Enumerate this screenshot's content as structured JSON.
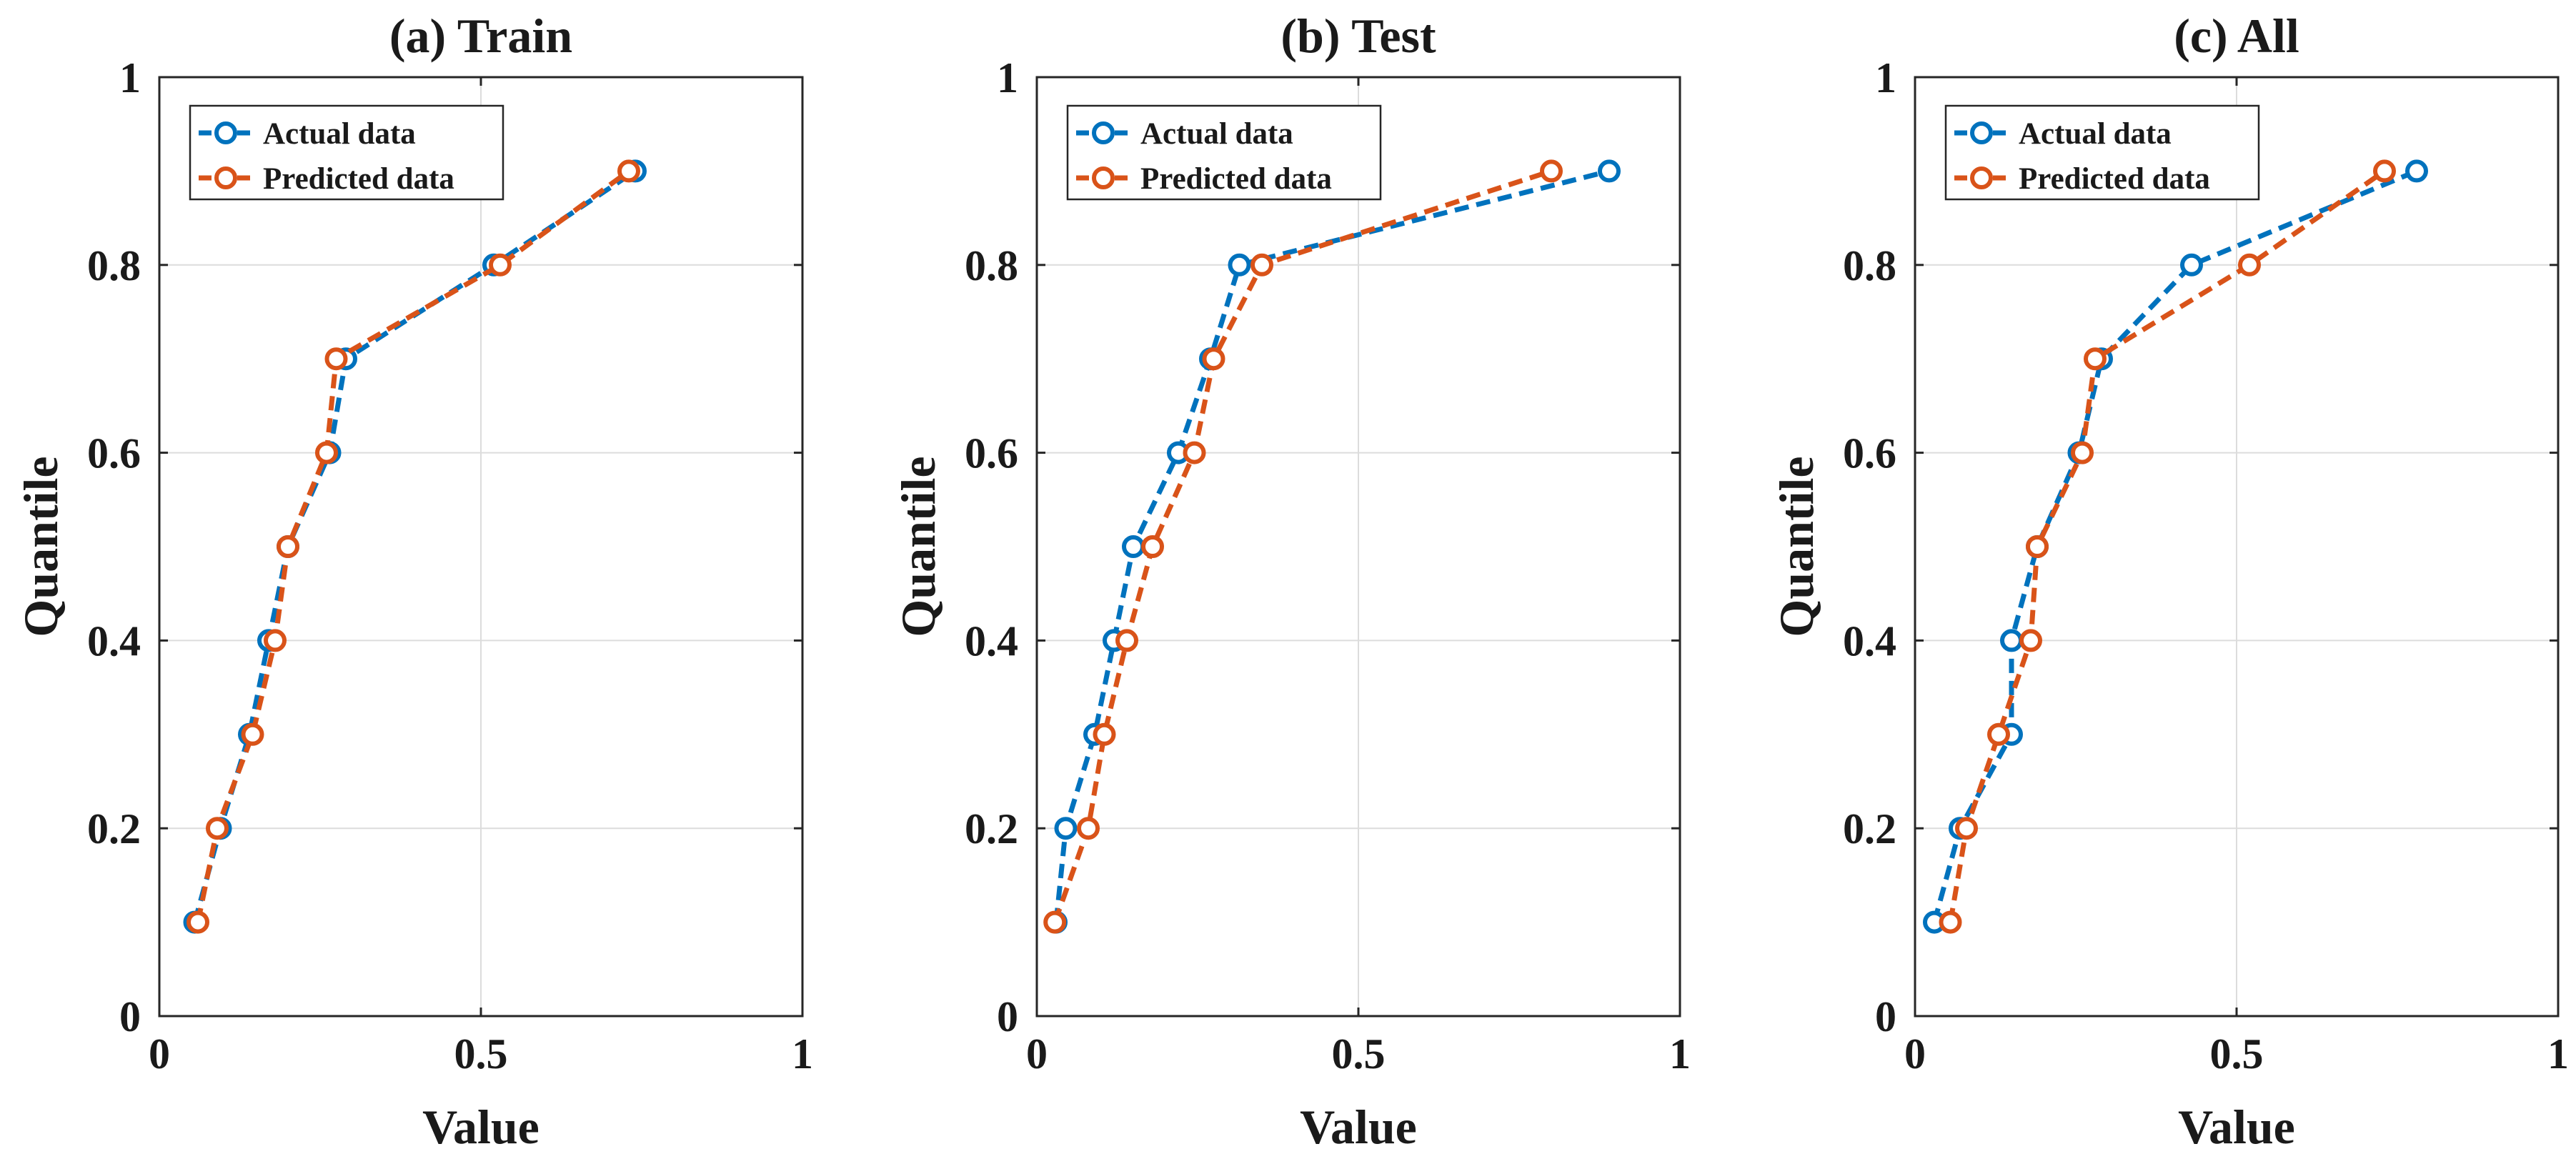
{
  "colors": {
    "actual": "#0072BD",
    "predicted": "#D95319"
  },
  "chart_data": [
    {
      "type": "line",
      "title": "(a) Train",
      "xlabel": "Value",
      "ylabel": "Quantile",
      "xlim": [
        0,
        1
      ],
      "ylim": [
        0,
        1
      ],
      "x_ticks": [
        0,
        0.5,
        1
      ],
      "x_tick_labels": [
        "0",
        "0.5",
        "1"
      ],
      "y_ticks": [
        0,
        0.2,
        0.4,
        0.6,
        0.8,
        1
      ],
      "y_tick_labels": [
        "0",
        "0.2",
        "0.4",
        "0.6",
        "0.8",
        "1"
      ],
      "grid": true,
      "legend_position": "top-left",
      "series": [
        {
          "name": "Actual data",
          "color_key": "actual",
          "points": [
            [
              0.055,
              0.1
            ],
            [
              0.095,
              0.2
            ],
            [
              0.14,
              0.3
            ],
            [
              0.17,
              0.4
            ],
            [
              0.2,
              0.5
            ],
            [
              0.265,
              0.6
            ],
            [
              0.29,
              0.7
            ],
            [
              0.52,
              0.8
            ],
            [
              0.74,
              0.9
            ]
          ]
        },
        {
          "name": "Predicted data",
          "color_key": "predicted",
          "points": [
            [
              0.06,
              0.1
            ],
            [
              0.09,
              0.2
            ],
            [
              0.145,
              0.3
            ],
            [
              0.18,
              0.4
            ],
            [
              0.2,
              0.5
            ],
            [
              0.26,
              0.6
            ],
            [
              0.275,
              0.7
            ],
            [
              0.53,
              0.8
            ],
            [
              0.73,
              0.9
            ]
          ]
        }
      ]
    },
    {
      "type": "line",
      "title": "(b) Test",
      "xlabel": "Value",
      "ylabel": "Quantile",
      "xlim": [
        0,
        1
      ],
      "ylim": [
        0,
        1
      ],
      "x_ticks": [
        0,
        0.5,
        1
      ],
      "x_tick_labels": [
        "0",
        "0.5",
        "1"
      ],
      "y_ticks": [
        0,
        0.2,
        0.4,
        0.6,
        0.8,
        1
      ],
      "y_tick_labels": [
        "0",
        "0.2",
        "0.4",
        "0.6",
        "0.8",
        "1"
      ],
      "grid": true,
      "legend_position": "top-left",
      "series": [
        {
          "name": "Actual data",
          "color_key": "actual",
          "points": [
            [
              0.03,
              0.1
            ],
            [
              0.045,
              0.2
            ],
            [
              0.09,
              0.3
            ],
            [
              0.12,
              0.4
            ],
            [
              0.15,
              0.5
            ],
            [
              0.22,
              0.6
            ],
            [
              0.27,
              0.7
            ],
            [
              0.315,
              0.8
            ],
            [
              0.89,
              0.9
            ]
          ]
        },
        {
          "name": "Predicted data",
          "color_key": "predicted",
          "points": [
            [
              0.028,
              0.1
            ],
            [
              0.08,
              0.2
            ],
            [
              0.105,
              0.3
            ],
            [
              0.14,
              0.4
            ],
            [
              0.18,
              0.5
            ],
            [
              0.245,
              0.6
            ],
            [
              0.275,
              0.7
            ],
            [
              0.35,
              0.8
            ],
            [
              0.8,
              0.9
            ]
          ]
        }
      ]
    },
    {
      "type": "line",
      "title": "(c) All",
      "xlabel": "Value",
      "ylabel": "Quantile",
      "xlim": [
        0,
        1
      ],
      "ylim": [
        0,
        1
      ],
      "x_ticks": [
        0,
        0.5,
        1
      ],
      "x_tick_labels": [
        "0",
        "0.5",
        "1"
      ],
      "y_ticks": [
        0,
        0.2,
        0.4,
        0.6,
        0.8,
        1
      ],
      "y_tick_labels": [
        "0",
        "0.2",
        "0.4",
        "0.6",
        "0.8",
        "1"
      ],
      "grid": true,
      "legend_position": "top-left",
      "series": [
        {
          "name": "Actual data",
          "color_key": "actual",
          "points": [
            [
              0.03,
              0.1
            ],
            [
              0.07,
              0.2
            ],
            [
              0.15,
              0.3
            ],
            [
              0.15,
              0.4
            ],
            [
              0.19,
              0.5
            ],
            [
              0.255,
              0.6
            ],
            [
              0.29,
              0.7
            ],
            [
              0.43,
              0.8
            ],
            [
              0.78,
              0.9
            ]
          ]
        },
        {
          "name": "Predicted data",
          "color_key": "predicted",
          "points": [
            [
              0.055,
              0.1
            ],
            [
              0.08,
              0.2
            ],
            [
              0.13,
              0.3
            ],
            [
              0.18,
              0.4
            ],
            [
              0.19,
              0.5
            ],
            [
              0.26,
              0.6
            ],
            [
              0.28,
              0.7
            ],
            [
              0.52,
              0.8
            ],
            [
              0.73,
              0.9
            ]
          ]
        }
      ]
    }
  ]
}
